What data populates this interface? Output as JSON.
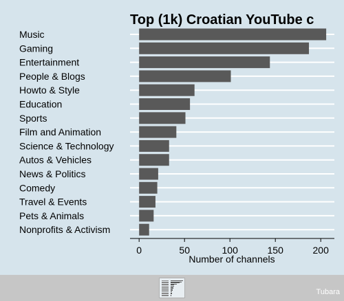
{
  "chart_data": {
    "type": "bar",
    "orientation": "horizontal",
    "title": "Top (1k) Croatian YouTube c",
    "xlabel": "Number of channels",
    "ylabel": "",
    "xlim": [
      -10,
      215
    ],
    "xticks": [
      0,
      50,
      100,
      150,
      200
    ],
    "grid": true,
    "categories": [
      "Music",
      "Gaming",
      "Entertainment",
      "People & Blogs",
      "Howto & Style",
      "Education",
      "Sports",
      "Film and Animation",
      "Science & Technology",
      "Autos & Vehicles",
      "News & Politics",
      "Comedy",
      "Travel & Events",
      "Pets & Animals",
      "Nonprofits & Activism"
    ],
    "values": [
      206,
      187,
      144,
      101,
      61,
      56,
      51,
      41,
      33,
      33,
      21,
      20,
      18,
      16,
      11
    ],
    "colors": {
      "bar": "#595959",
      "background": "#d6e4ec",
      "grid": "#ffffff"
    }
  },
  "footer": {
    "watermark": "Tubara",
    "thumbnail_icon": "chart-thumbnail-icon"
  }
}
